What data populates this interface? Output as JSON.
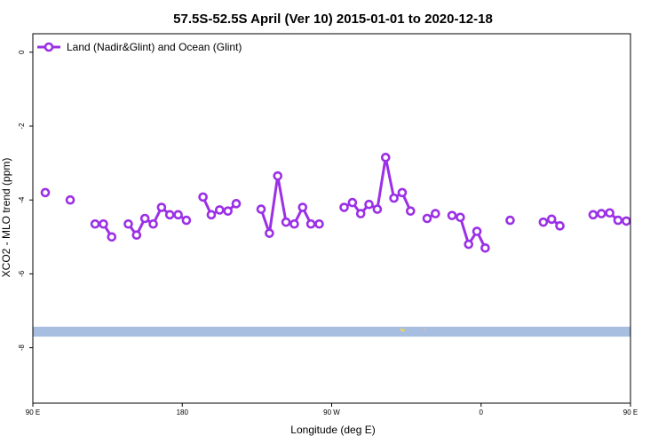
{
  "chart_data": {
    "type": "line",
    "title": "57.5S-52.5S April (Ver 10)   2015-01-01 to 2020-12-18",
    "xlabel": "Longitude (deg E)",
    "ylabel": "XCO2 - MLO trend (ppm)",
    "xlim": [
      90,
      450
    ],
    "ylim": [
      -9.5,
      0.5
    ],
    "x_ticks": [
      {
        "value": 90,
        "label": "90 E"
      },
      {
        "value": 180,
        "label": "180"
      },
      {
        "value": 270,
        "label": "90 W"
      },
      {
        "value": 360,
        "label": "0"
      },
      {
        "value": 450,
        "label": "90 E"
      },
      {
        "value": 540,
        "label": "180"
      }
    ],
    "y_ticks": [
      {
        "value": 0,
        "label": "0"
      },
      {
        "value": -2,
        "label": "-2"
      },
      {
        "value": -4,
        "label": "-4"
      },
      {
        "value": -6,
        "label": "-6"
      },
      {
        "value": -8,
        "label": "-8"
      }
    ],
    "legend_position": "top-left",
    "series": [
      {
        "name": "Land (Nadir&Glint) and Ocean (Glint)",
        "color": "#9b30e6",
        "segments": [
          [
            [
              97.5,
              -3.8
            ]
          ],
          [
            [
              112.5,
              -4.0
            ]
          ],
          [
            [
              127.5,
              -4.65
            ],
            [
              132.5,
              -4.65
            ],
            [
              137.5,
              -5.0
            ]
          ],
          [
            [
              147.5,
              -4.65
            ],
            [
              152.5,
              -4.95
            ],
            [
              157.5,
              -4.5
            ],
            [
              162.5,
              -4.65
            ],
            [
              167.5,
              -4.2
            ],
            [
              172.5,
              -4.4
            ],
            [
              177.5,
              -4.4
            ],
            [
              182.5,
              -4.55
            ]
          ],
          [
            [
              192.5,
              -3.92
            ],
            [
              197.5,
              -4.4
            ],
            [
              202.5,
              -4.27
            ],
            [
              207.5,
              -4.3
            ],
            [
              212.5,
              -4.1
            ]
          ],
          [
            [
              227.5,
              -4.25
            ],
            [
              232.5,
              -4.9
            ],
            [
              237.5,
              -3.35
            ],
            [
              242.5,
              -4.6
            ],
            [
              247.5,
              -4.65
            ],
            [
              252.5,
              -4.2
            ],
            [
              257.5,
              -4.65
            ],
            [
              262.5,
              -4.65
            ]
          ],
          [
            [
              277.5,
              -4.2
            ],
            [
              282.5,
              -4.07
            ],
            [
              287.5,
              -4.37
            ],
            [
              292.5,
              -4.12
            ],
            [
              297.5,
              -4.25
            ],
            [
              302.5,
              -2.85
            ],
            [
              307.5,
              -3.95
            ],
            [
              312.5,
              -3.8
            ],
            [
              317.5,
              -4.3
            ]
          ],
          [
            [
              327.5,
              -4.5
            ],
            [
              332.5,
              -4.37
            ]
          ],
          [
            [
              342.5,
              -4.42
            ],
            [
              347.5,
              -4.47
            ],
            [
              352.5,
              -5.2
            ],
            [
              357.5,
              -4.85
            ],
            [
              362.5,
              -5.3
            ]
          ],
          [
            [
              377.5,
              -4.55
            ]
          ],
          [
            [
              397.5,
              -4.6
            ],
            [
              402.5,
              -4.52
            ],
            [
              407.5,
              -4.7
            ]
          ],
          [
            [
              427.5,
              -4.4
            ],
            [
              432.5,
              -4.37
            ],
            [
              437.5,
              -4.35
            ],
            [
              442.5,
              -4.55
            ],
            [
              447.5,
              -4.57
            ]
          ]
        ]
      }
    ],
    "continent_band": {
      "y_top": -7.43,
      "y_bottom": -7.7,
      "color": "#a8bee0",
      "land_color": "#e8d36a"
    }
  }
}
